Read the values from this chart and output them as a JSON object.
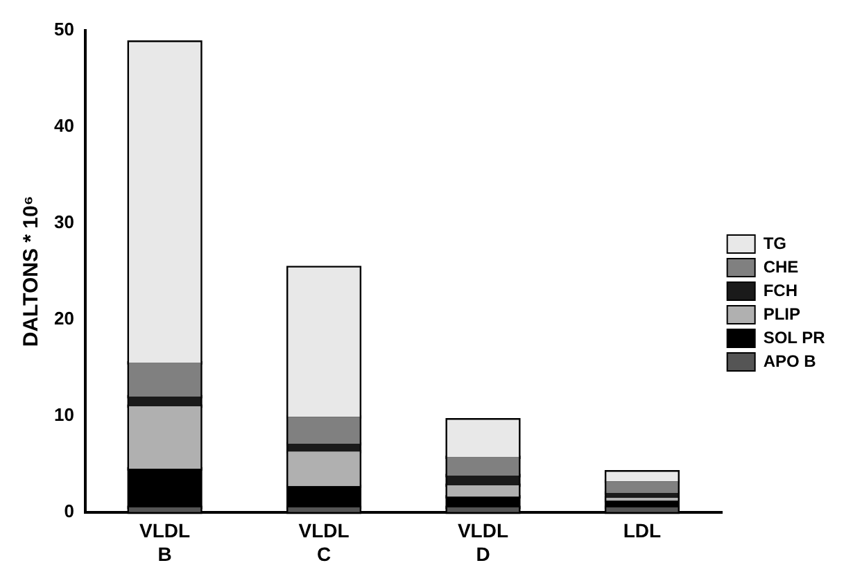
{
  "chart_data": {
    "type": "bar",
    "stacked": true,
    "ylabel": "DALTONS * 10⁶",
    "categories": [
      "VLDL B",
      "VLDL C",
      "VLDL D",
      "LDL"
    ],
    "series": [
      {
        "name": "APO B",
        "color": "#555555",
        "values": [
          0.5,
          0.5,
          0.5,
          0.5
        ]
      },
      {
        "name": "SOL PR",
        "color": "#000000",
        "values": [
          4.0,
          2.2,
          1.1,
          0.7
        ]
      },
      {
        "name": "PLIP",
        "color": "#b0b0b0",
        "values": [
          6.5,
          3.6,
          1.2,
          0.3
        ]
      },
      {
        "name": "FCH",
        "color": "#1a1a1a",
        "values": [
          1.0,
          0.8,
          1.0,
          0.5
        ]
      },
      {
        "name": "CHE",
        "color": "#808080",
        "values": [
          3.5,
          2.8,
          1.9,
          1.2
        ]
      },
      {
        "name": "TG",
        "color": "#e8e8e8",
        "values": [
          33.3,
          15.5,
          3.9,
          1.0
        ]
      }
    ],
    "ylim": [
      0,
      50
    ],
    "yticks": [
      0,
      10,
      20,
      30,
      40,
      50
    ],
    "grid": false,
    "legend": "right"
  }
}
